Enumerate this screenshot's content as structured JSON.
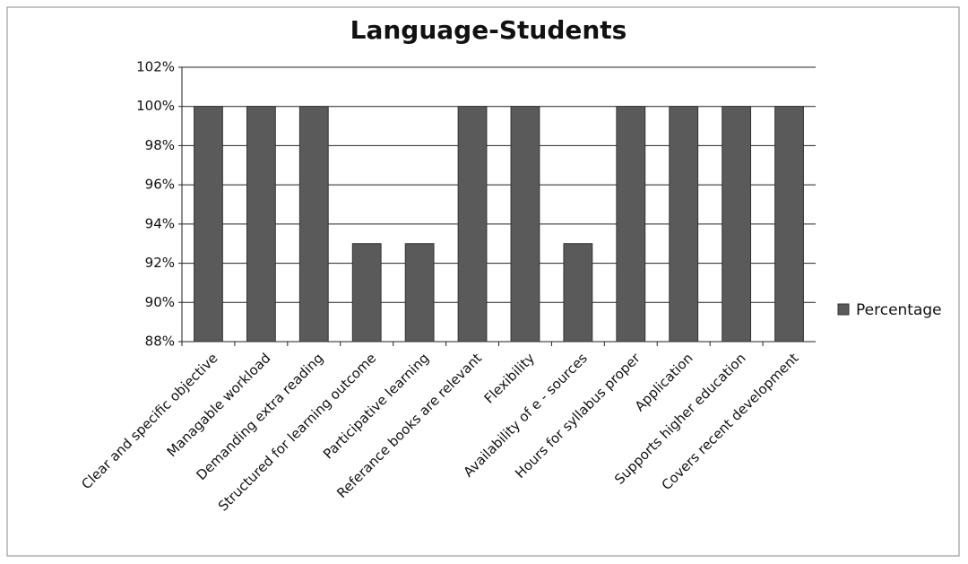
{
  "chart_data": {
    "type": "bar",
    "title": "Language-Students",
    "categories": [
      "Clear and specific objective",
      "Managable workload",
      "Demanding extra reading",
      "Structured for learning outcome",
      "Participative learning",
      "Referance books are relevant",
      "Flexibility",
      "Availability of e - sources",
      "Hours for syllabus proper",
      "Application",
      "Supports higher education",
      "Covers recent development"
    ],
    "series": [
      {
        "name": "Percentage",
        "color": "#5a5a5a",
        "values": [
          100,
          100,
          100,
          93,
          93,
          100,
          100,
          93,
          100,
          100,
          100,
          100
        ]
      }
    ],
    "ylim": [
      88,
      102
    ],
    "yticks": [
      {
        "value": 88,
        "label": "88%"
      },
      {
        "value": 90,
        "label": "90%"
      },
      {
        "value": 92,
        "label": "92%"
      },
      {
        "value": 94,
        "label": "94%"
      },
      {
        "value": 96,
        "label": "96%"
      },
      {
        "value": 98,
        "label": "98%"
      },
      {
        "value": 100,
        "label": "100%"
      },
      {
        "value": 102,
        "label": "102%"
      }
    ],
    "grid": true,
    "legend": "right"
  }
}
